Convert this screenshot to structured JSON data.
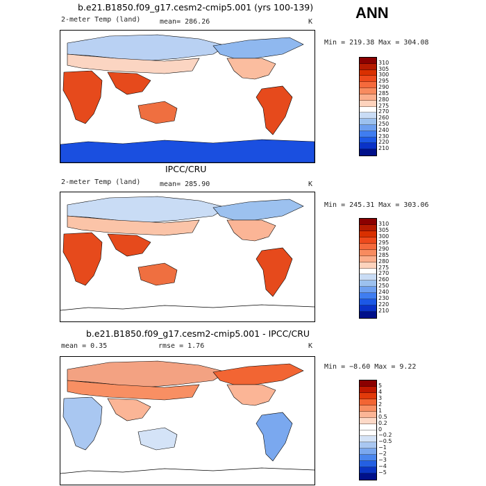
{
  "season": "ANN",
  "panels": [
    {
      "id": "model",
      "title": "b.e21.B1850.f09_g17.cesm2-cmip5.001 (yrs 100-139)",
      "left_label": "2-meter Temp (land)",
      "mid_label": "mean= 286.26",
      "units": "K",
      "minmax": "Min = 219.38 Max = 304.08"
    },
    {
      "id": "obs",
      "title": "IPCC/CRU",
      "left_label": "2-meter Temp (land)",
      "mid_label": "mean= 285.90",
      "units": "K",
      "minmax": "Min = 245.31 Max = 303.06"
    },
    {
      "id": "diff",
      "title": "b.e21.B1850.f09_g17.cesm2-cmip5.001 - IPCC/CRU",
      "left_label": "mean =    0.35",
      "mid_label": "rmse =    1.76",
      "units": "K",
      "minmax": "Min =  −8.60 Max =   9.22"
    }
  ],
  "colorbars": {
    "absolute": {
      "labels": [
        "310",
        "305",
        "300",
        "295",
        "290",
        "285",
        "280",
        "275",
        "270",
        "260",
        "250",
        "240",
        "230",
        "220",
        "210"
      ],
      "colors": [
        "#8b0000",
        "#b51a00",
        "#d93000",
        "#ee4a1c",
        "#f56a3c",
        "#f88b5f",
        "#fbae8c",
        "#fdd3bd",
        "#ffffff",
        "#c9dcf5",
        "#9cc1ef",
        "#6d9ff0",
        "#3f7df0",
        "#1c58e6",
        "#0a32c8",
        "#00108a"
      ]
    },
    "difference": {
      "labels": [
        "5",
        "4",
        "3",
        "2",
        "1",
        "0.5",
        "0.2",
        "0",
        "−0.2",
        "−0.5",
        "−1",
        "−2",
        "−3",
        "−4",
        "−5"
      ],
      "colors": [
        "#8b0000",
        "#c01800",
        "#e23a0a",
        "#f26533",
        "#f88f63",
        "#fbb596",
        "#fdd9c7",
        "#ffffff",
        "#ffffff",
        "#d4e3f7",
        "#a9c7f1",
        "#7aa8ef",
        "#4a86ee",
        "#2460e2",
        "#0a34c3",
        "#00108a"
      ]
    }
  }
}
